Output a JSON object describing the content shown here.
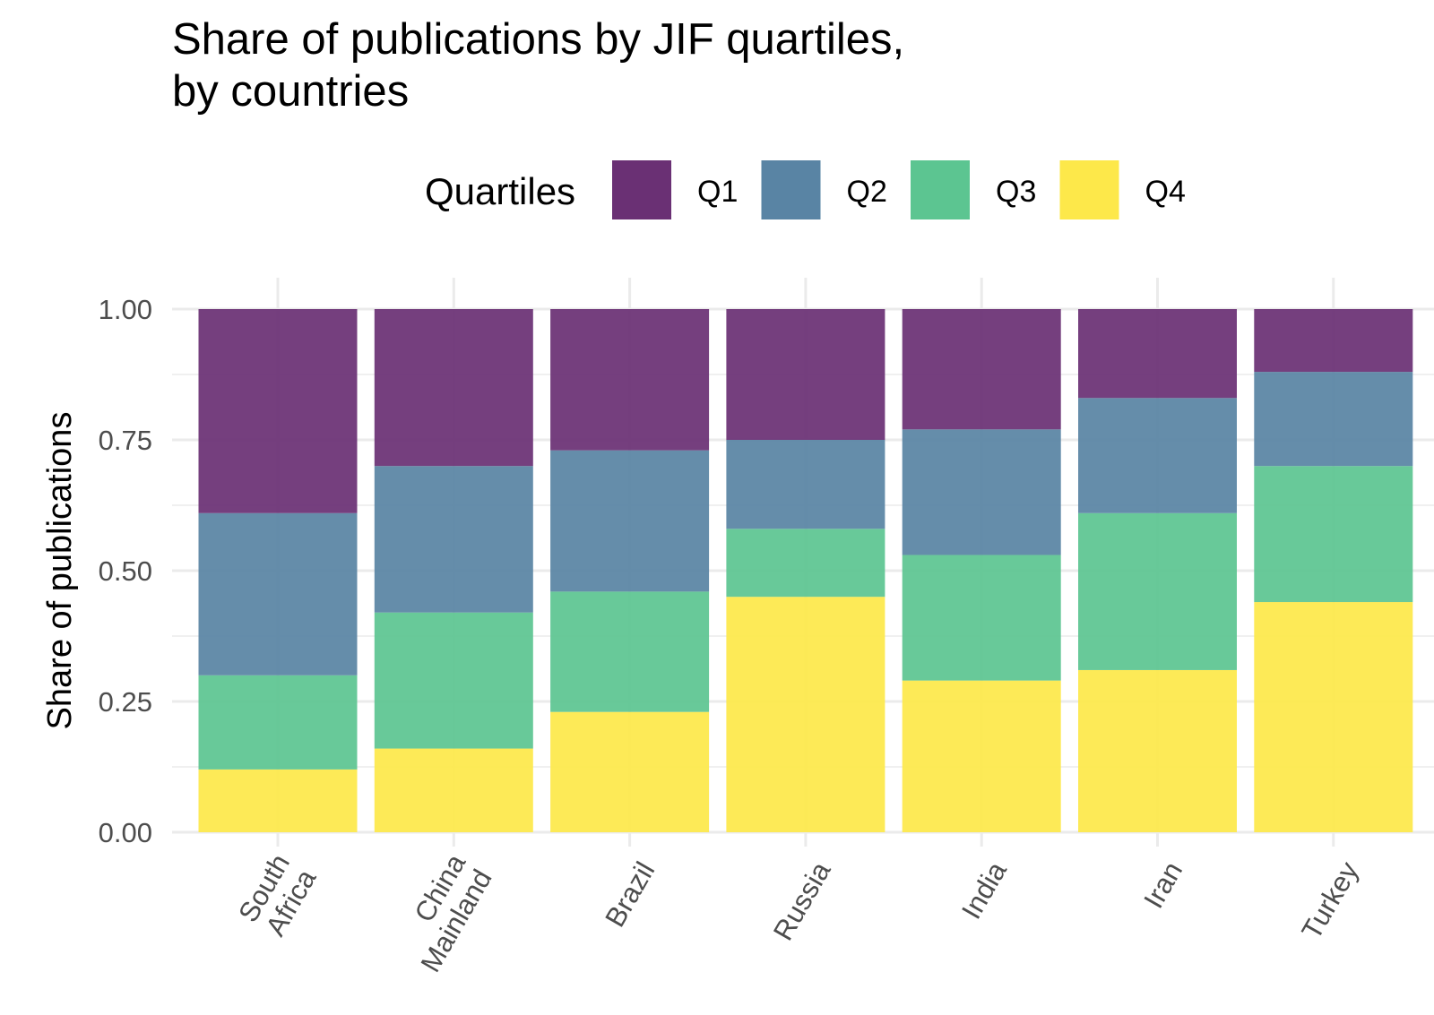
{
  "chart_data": {
    "type": "bar",
    "stacked": true,
    "title": "Share of publications by JIF quartiles,",
    "title_line2": "by countries",
    "xlabel": "",
    "ylabel": "Share of publications",
    "ylim": [
      0,
      1
    ],
    "yticks": [
      "0.00",
      "0.25",
      "0.50",
      "0.75",
      "1.00"
    ],
    "ytick_values": [
      0,
      0.25,
      0.5,
      0.75,
      1.0
    ],
    "grid": true,
    "legend": {
      "title": "Quartiles",
      "position": "top",
      "entries": [
        "Q1",
        "Q2",
        "Q3",
        "Q4"
      ]
    },
    "categories": [
      [
        "South",
        "Africa"
      ],
      [
        "China",
        "Mainland"
      ],
      [
        "Brazil"
      ],
      [
        "Russia"
      ],
      [
        "India"
      ],
      [
        "Iran"
      ],
      [
        "Turkey"
      ]
    ],
    "series": [
      {
        "name": "Q4",
        "color": "#fde84a",
        "values": [
          0.12,
          0.16,
          0.23,
          0.45,
          0.29,
          0.31,
          0.44
        ]
      },
      {
        "name": "Q3",
        "color": "#5cc591",
        "values": [
          0.18,
          0.26,
          0.23,
          0.13,
          0.24,
          0.3,
          0.26
        ]
      },
      {
        "name": "Q2",
        "color": "#5984a4",
        "values": [
          0.31,
          0.28,
          0.27,
          0.17,
          0.24,
          0.22,
          0.18
        ]
      },
      {
        "name": "Q1",
        "color": "#6a3074",
        "values": [
          0.39,
          0.3,
          0.27,
          0.25,
          0.23,
          0.17,
          0.12
        ]
      }
    ]
  }
}
